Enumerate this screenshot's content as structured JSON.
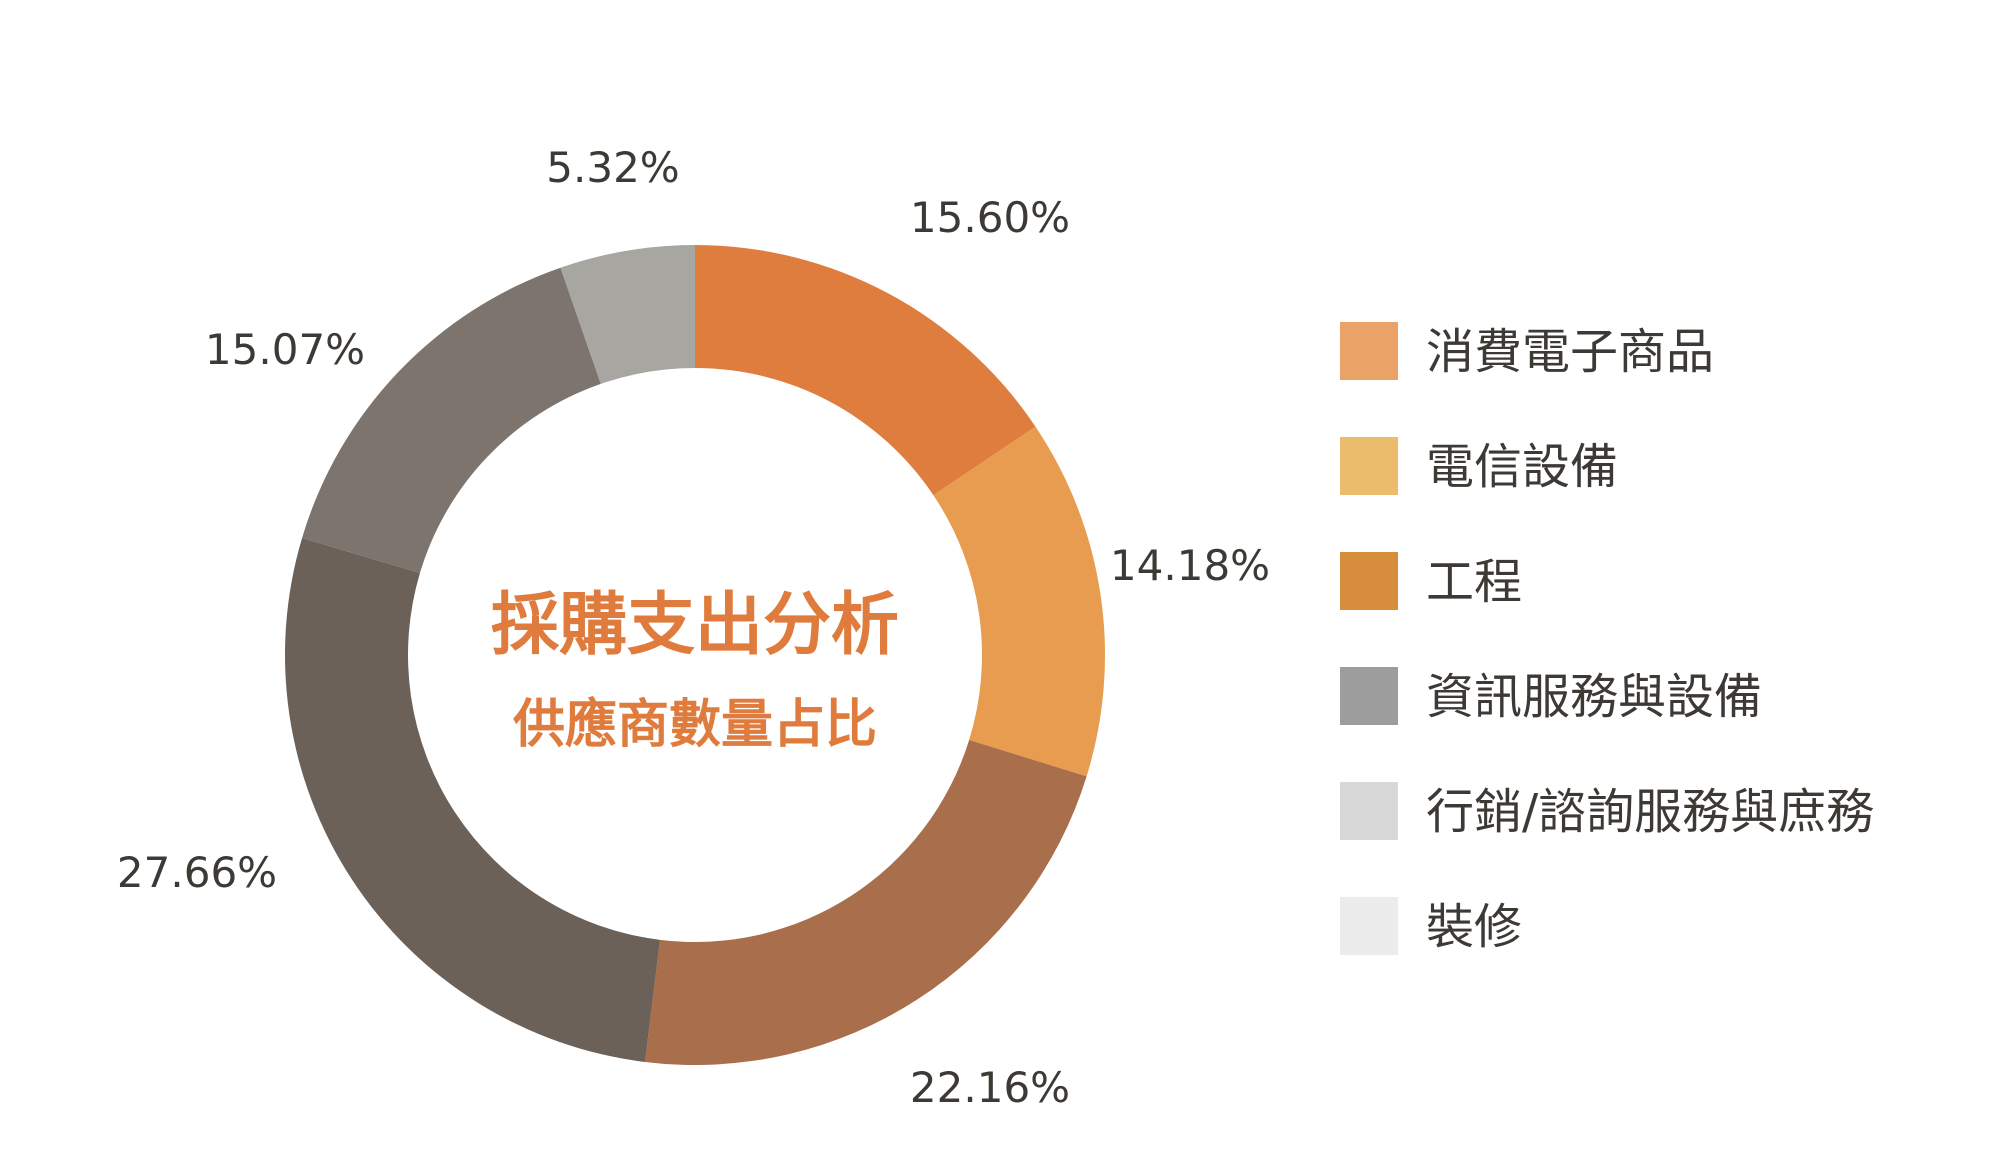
{
  "chart_data": {
    "type": "pie",
    "variant": "donut",
    "title": "採購支出分析",
    "subtitle": "供應商數量占比",
    "title_color": "#df7c3d",
    "label_color": "#3d3935",
    "slices": [
      {
        "name": "消費電子商品",
        "value": 15.6,
        "label": "15.60%",
        "slice_color": "#df7d3f",
        "legend_color": "#eaa266"
      },
      {
        "name": "電信設備",
        "value": 14.18,
        "label": "14.18%",
        "slice_color": "#e89c4f",
        "legend_color": "#ecbc6d"
      },
      {
        "name": "工程",
        "value": 22.16,
        "label": "22.16%",
        "slice_color": "#a96e4b",
        "legend_color": "#d68d3c"
      },
      {
        "name": "資訊服務與設備",
        "value": 27.66,
        "label": "27.66%",
        "slice_color": "#6b6159",
        "legend_color": "#9d9d9d"
      },
      {
        "name": "行銷/諮詢服務與庶務",
        "value": 15.07,
        "label": "15.07%",
        "slice_color": "#7c746d",
        "legend_color": "#d8d8d8"
      },
      {
        "name": "裝修",
        "value": 5.32,
        "label": "5.32%",
        "slice_color": "#a7a6a1",
        "legend_color": "#ececec"
      }
    ],
    "legend_placement": "right"
  }
}
